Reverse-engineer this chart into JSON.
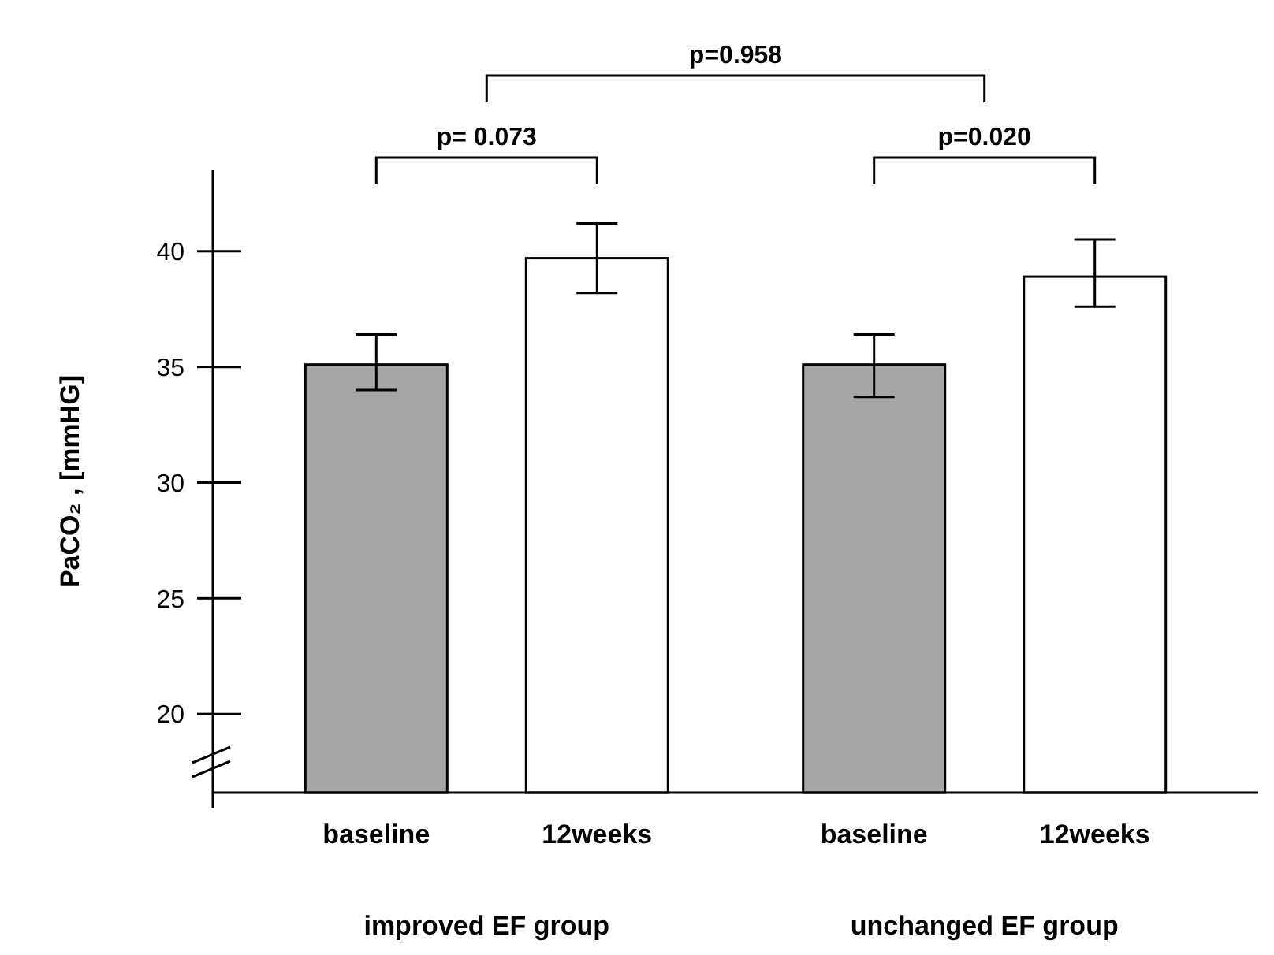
{
  "chart_data": {
    "type": "bar",
    "ylabel": "PaCO₂ , [mmHG]",
    "categories": [
      "improved EF group",
      "unchanged EF group"
    ],
    "series": [
      {
        "name": "baseline",
        "color": "#a6a6a6",
        "values": [
          35.1,
          35.1
        ],
        "errors": [
          [
            34.0,
            36.4
          ],
          [
            33.7,
            36.4
          ]
        ]
      },
      {
        "name": "12weeks",
        "color": "#ffffff",
        "values": [
          39.7,
          38.9
        ],
        "errors": [
          [
            38.2,
            41.2
          ],
          [
            37.6,
            40.5
          ]
        ]
      }
    ],
    "ylim": [
      16.6,
      43.5
    ],
    "yticks": [
      20,
      25,
      30,
      35,
      40
    ],
    "grid": false,
    "annotations": [
      "p= 0.073",
      "p=0.020",
      "p=0.958"
    ]
  }
}
